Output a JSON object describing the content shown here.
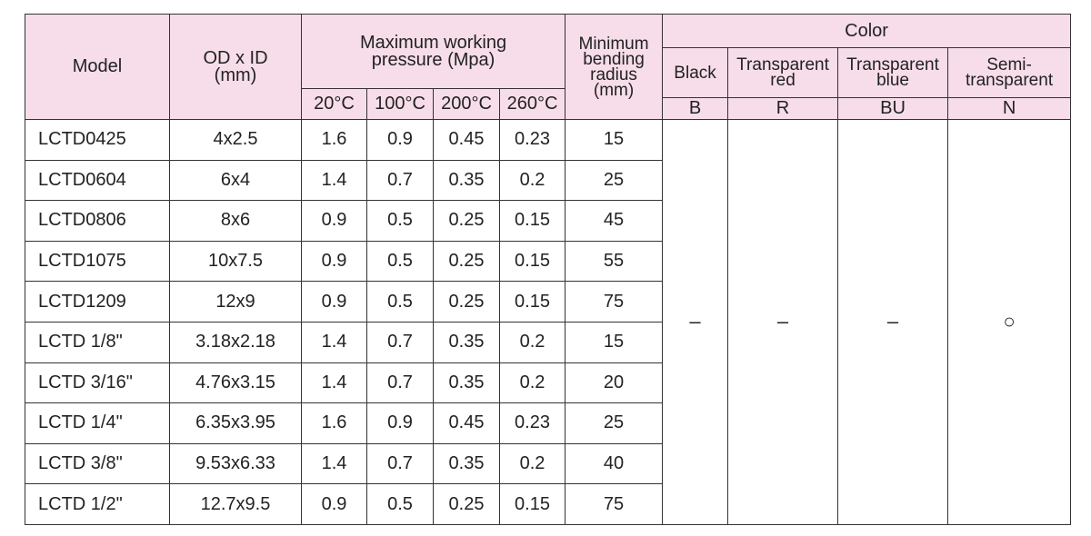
{
  "table": {
    "header": {
      "model": "Model",
      "od_id": "OD x ID\n(mm)",
      "pressure": "Maximum working\npressure (Mpa)",
      "temps": [
        "20°C",
        "100°C",
        "200°C",
        "260°C"
      ],
      "bending": "Minimum\nbending\nradius\n(mm)",
      "color": "Color",
      "color_names": [
        "Black",
        "Transparent\nred",
        "Transparent\nblue",
        "Semi-\ntransparent"
      ],
      "color_codes": [
        "B",
        "R",
        "BU",
        "N"
      ]
    },
    "rows": [
      [
        "LCTD0425",
        "4x2.5",
        "1.6",
        "0.9",
        "0.45",
        "0.23",
        "15"
      ],
      [
        "LCTD0604",
        "6x4",
        "1.4",
        "0.7",
        "0.35",
        "0.2",
        "25"
      ],
      [
        "LCTD0806",
        "8x6",
        "0.9",
        "0.5",
        "0.25",
        "0.15",
        "45"
      ],
      [
        "LCTD1075",
        "10x7.5",
        "0.9",
        "0.5",
        "0.25",
        "0.15",
        "55"
      ],
      [
        "LCTD1209",
        "12x9",
        "0.9",
        "0.5",
        "0.25",
        "0.15",
        "75"
      ],
      [
        "LCTD 1/8\"",
        "3.18x2.18",
        "1.4",
        "0.7",
        "0.35",
        "0.2",
        "15"
      ],
      [
        "LCTD 3/16\"",
        "4.76x3.15",
        "1.4",
        "0.7",
        "0.35",
        "0.2",
        "20"
      ],
      [
        "LCTD 1/4\"",
        "6.35x3.95",
        "1.6",
        "0.9",
        "0.45",
        "0.23",
        "25"
      ],
      [
        "LCTD 3/8\"",
        "9.53x6.33",
        "1.4",
        "0.7",
        "0.35",
        "0.2",
        "40"
      ],
      [
        "LCTD 1/2\"",
        "12.7x9.5",
        "0.9",
        "0.5",
        "0.25",
        "0.15",
        "75"
      ]
    ],
    "color_marks": [
      "–",
      "–",
      "–",
      "○"
    ]
  }
}
